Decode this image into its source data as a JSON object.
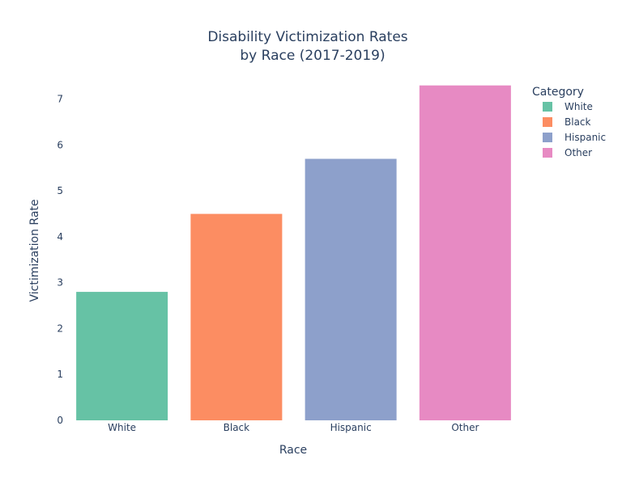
{
  "chart_data": {
    "type": "bar",
    "title": "Disability Victimization Rates",
    "subtitle": "by Race (2017-2019)",
    "xlabel": "Race",
    "ylabel": "Victimization Rate",
    "categories": [
      "White",
      "Black",
      "Hispanic",
      "Other"
    ],
    "values": [
      2.8,
      4.5,
      5.7,
      7.3
    ],
    "colors": [
      "#66c2a5",
      "#fc8d62",
      "#8da0cb",
      "#e78ac3"
    ],
    "ylim": [
      0,
      7.4
    ],
    "yticks": [
      0,
      1,
      2,
      3,
      4,
      5,
      6,
      7
    ],
    "grid": false,
    "legend": {
      "title": "Category",
      "placement": "top-right",
      "items": [
        "White",
        "Black",
        "Hispanic",
        "Other"
      ]
    }
  }
}
